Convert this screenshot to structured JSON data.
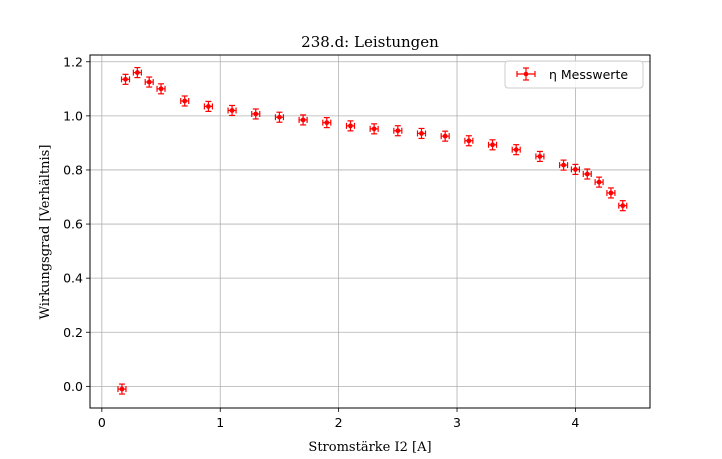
{
  "chart_data": {
    "type": "scatter",
    "title": "238.d: Leistungen",
    "xlabel": "Stromstärke I2 [A]",
    "ylabel": "Wirkungsgrad [Verhältnis]",
    "xlim": [
      -0.1,
      4.63
    ],
    "ylim": [
      -0.08,
      1.225
    ],
    "xticks": [
      0,
      1,
      2,
      3,
      4
    ],
    "yticks": [
      0.0,
      0.2,
      0.4,
      0.6,
      0.8,
      1.0,
      1.2
    ],
    "xtick_labels": [
      "0",
      "1",
      "2",
      "3",
      "4"
    ],
    "ytick_labels": [
      "0.0",
      "0.2",
      "0.4",
      "0.6",
      "0.8",
      "1.0",
      "1.2"
    ],
    "grid": true,
    "legend_position": "top-right",
    "series": [
      {
        "name": "η Messwerte",
        "color": "#ff0000",
        "marker": "point-with-errorbars",
        "x": [
          0.17,
          0.2,
          0.3,
          0.4,
          0.5,
          0.7,
          0.9,
          1.1,
          1.3,
          1.5,
          1.7,
          1.9,
          2.1,
          2.3,
          2.5,
          2.7,
          2.9,
          3.1,
          3.3,
          3.5,
          3.7,
          3.9,
          4.0,
          4.1,
          4.2,
          4.3,
          4.4
        ],
        "y": [
          -0.01,
          1.135,
          1.16,
          1.125,
          1.1,
          1.055,
          1.035,
          1.02,
          1.007,
          0.995,
          0.985,
          0.975,
          0.963,
          0.952,
          0.945,
          0.935,
          0.925,
          0.908,
          0.893,
          0.875,
          0.85,
          0.818,
          0.802,
          0.785,
          0.755,
          0.715,
          0.668
        ]
      }
    ]
  }
}
